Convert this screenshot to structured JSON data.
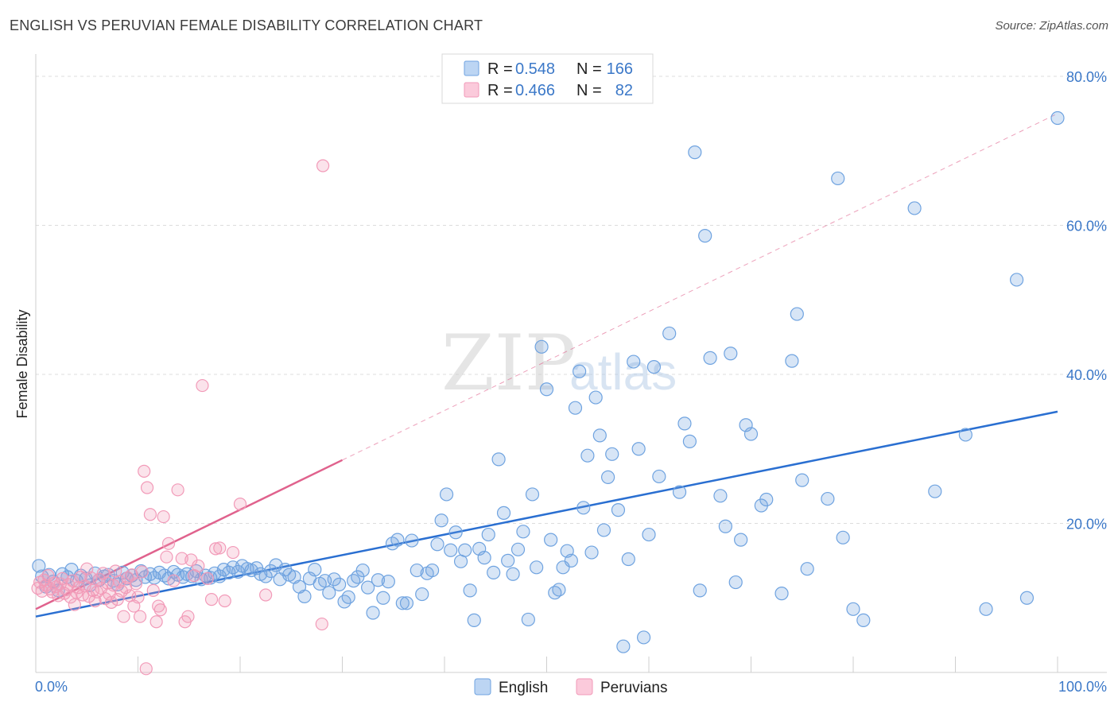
{
  "title": "ENGLISH VS PERUVIAN FEMALE DISABILITY CORRELATION CHART",
  "source": "Source: ZipAtlas.com",
  "watermark": {
    "zip": "ZIP",
    "atlas": "atlas"
  },
  "colors": {
    "english": "#6fa3e0",
    "english_line": "#2a6fd1",
    "peruvians": "#f29ab8",
    "peruvians_line": "#e0628d",
    "tick": "#3b78c8"
  },
  "legend": {
    "r_label": "R =",
    "n_label": "N =",
    "rows": [
      {
        "r": "0.548",
        "n": "166"
      },
      {
        "r": "0.466",
        "n": "82"
      }
    ]
  },
  "bottom_legend": [
    "English",
    "Peruvians"
  ],
  "chart_data": {
    "type": "scatter",
    "title": "ENGLISH VS PERUVIAN FEMALE DISABILITY CORRELATION CHART",
    "xlabel": "",
    "ylabel": "Female Disability",
    "xlim": [
      0,
      100
    ],
    "ylim": [
      0,
      80
    ],
    "x_tick_labels": [
      "0.0%",
      "100.0%"
    ],
    "y_tick_labels": [
      "20.0%",
      "40.0%",
      "60.0%",
      "80.0%"
    ],
    "y_ticks": [
      20,
      40,
      60,
      80
    ],
    "grid": "horizontal dashed",
    "legend_position": "top-center",
    "series": [
      {
        "name": "English",
        "r": 0.548,
        "n": 166,
        "trend": {
          "x0": 0,
          "y0": 7.5,
          "x1": 100,
          "y1": 35.0
        },
        "points": [
          [
            0.3,
            14.3
          ],
          [
            0.6,
            12.9
          ],
          [
            1.0,
            11.5
          ],
          [
            1.3,
            13.1
          ],
          [
            1.7,
            12.2
          ],
          [
            2.2,
            11.0
          ],
          [
            2.6,
            13.2
          ],
          [
            3.1,
            12.8
          ],
          [
            3.5,
            13.8
          ],
          [
            4.0,
            12.3
          ],
          [
            4.4,
            13.0
          ],
          [
            4.9,
            12.6
          ],
          [
            5.3,
            11.7
          ],
          [
            5.8,
            13.3
          ],
          [
            6.2,
            12.4
          ],
          [
            6.7,
            12.9
          ],
          [
            7.1,
            13.1
          ],
          [
            7.6,
            12.3
          ],
          [
            8.0,
            11.8
          ],
          [
            8.5,
            13.4
          ],
          [
            8.9,
            12.6
          ],
          [
            9.4,
            13.0
          ],
          [
            9.8,
            12.4
          ],
          [
            10.3,
            13.6
          ],
          [
            10.7,
            12.8
          ],
          [
            11.2,
            13.2
          ],
          [
            11.6,
            12.7
          ],
          [
            12.1,
            13.4
          ],
          [
            12.6,
            13.0
          ],
          [
            13.0,
            12.6
          ],
          [
            13.5,
            13.5
          ],
          [
            13.9,
            13.1
          ],
          [
            14.4,
            12.8
          ],
          [
            14.8,
            13.2
          ],
          [
            15.3,
            12.9
          ],
          [
            15.7,
            13.6
          ],
          [
            16.2,
            12.5
          ],
          [
            16.6,
            13.0
          ],
          [
            17.1,
            12.7
          ],
          [
            17.5,
            13.3
          ],
          [
            18.0,
            12.9
          ],
          [
            18.4,
            13.8
          ],
          [
            18.9,
            13.4
          ],
          [
            19.3,
            14.1
          ],
          [
            19.8,
            13.5
          ],
          [
            20.2,
            14.3
          ],
          [
            20.7,
            13.9
          ],
          [
            21.1,
            13.7
          ],
          [
            21.6,
            14.0
          ],
          [
            22.0,
            13.2
          ],
          [
            22.5,
            12.9
          ],
          [
            23.0,
            13.6
          ],
          [
            23.5,
            14.4
          ],
          [
            23.9,
            12.5
          ],
          [
            24.4,
            13.8
          ],
          [
            24.8,
            13.1
          ],
          [
            25.3,
            12.8
          ],
          [
            25.8,
            11.5
          ],
          [
            26.3,
            10.2
          ],
          [
            26.8,
            12.6
          ],
          [
            27.3,
            13.8
          ],
          [
            27.8,
            11.9
          ],
          [
            28.3,
            12.3
          ],
          [
            28.7,
            10.7
          ],
          [
            29.2,
            12.5
          ],
          [
            29.7,
            11.8
          ],
          [
            30.2,
            9.5
          ],
          [
            30.6,
            10.1
          ],
          [
            31.1,
            12.3
          ],
          [
            31.5,
            12.8
          ],
          [
            32.0,
            13.7
          ],
          [
            32.5,
            11.4
          ],
          [
            33.0,
            8.0
          ],
          [
            33.5,
            12.4
          ],
          [
            34.0,
            10.0
          ],
          [
            34.5,
            12.2
          ],
          [
            34.9,
            17.3
          ],
          [
            35.4,
            17.8
          ],
          [
            35.9,
            9.3
          ],
          [
            36.3,
            9.3
          ],
          [
            36.8,
            17.7
          ],
          [
            37.3,
            13.7
          ],
          [
            37.8,
            10.5
          ],
          [
            38.3,
            13.3
          ],
          [
            38.8,
            13.7
          ],
          [
            39.3,
            17.2
          ],
          [
            39.7,
            20.4
          ],
          [
            40.2,
            23.9
          ],
          [
            40.6,
            16.4
          ],
          [
            41.1,
            18.8
          ],
          [
            41.6,
            14.9
          ],
          [
            42.0,
            16.4
          ],
          [
            42.5,
            11.0
          ],
          [
            42.9,
            7.0
          ],
          [
            43.4,
            16.6
          ],
          [
            43.9,
            15.4
          ],
          [
            44.3,
            18.5
          ],
          [
            44.8,
            13.4
          ],
          [
            45.3,
            28.6
          ],
          [
            45.8,
            21.4
          ],
          [
            46.2,
            15.0
          ],
          [
            46.7,
            13.2
          ],
          [
            47.2,
            16.5
          ],
          [
            47.7,
            18.9
          ],
          [
            48.2,
            7.1
          ],
          [
            48.6,
            23.9
          ],
          [
            49.0,
            14.1
          ],
          [
            49.5,
            43.7
          ],
          [
            50.0,
            38.0
          ],
          [
            50.4,
            17.8
          ],
          [
            50.8,
            10.7
          ],
          [
            51.2,
            11.1
          ],
          [
            51.6,
            14.1
          ],
          [
            52.0,
            16.3
          ],
          [
            52.4,
            15.0
          ],
          [
            52.8,
            35.5
          ],
          [
            53.2,
            40.4
          ],
          [
            53.6,
            22.1
          ],
          [
            54.0,
            29.1
          ],
          [
            54.4,
            16.1
          ],
          [
            54.8,
            36.9
          ],
          [
            55.2,
            31.8
          ],
          [
            55.6,
            19.1
          ],
          [
            56.0,
            26.2
          ],
          [
            56.4,
            29.3
          ],
          [
            57.0,
            21.8
          ],
          [
            57.5,
            3.5
          ],
          [
            58.0,
            15.2
          ],
          [
            58.5,
            41.7
          ],
          [
            59.0,
            30.0
          ],
          [
            59.5,
            4.7
          ],
          [
            60.0,
            18.5
          ],
          [
            60.5,
            41.0
          ],
          [
            61.0,
            26.3
          ],
          [
            62.0,
            45.5
          ],
          [
            63.0,
            24.2
          ],
          [
            63.5,
            33.4
          ],
          [
            64.0,
            31.0
          ],
          [
            64.5,
            69.8
          ],
          [
            65.0,
            11.0
          ],
          [
            65.5,
            58.6
          ],
          [
            66.0,
            42.2
          ],
          [
            67.0,
            23.7
          ],
          [
            67.5,
            19.6
          ],
          [
            68.0,
            42.8
          ],
          [
            68.5,
            12.1
          ],
          [
            69.0,
            17.8
          ],
          [
            69.5,
            33.2
          ],
          [
            70.0,
            32.0
          ],
          [
            71.0,
            22.4
          ],
          [
            71.5,
            23.2
          ],
          [
            73.0,
            10.6
          ],
          [
            74.0,
            41.8
          ],
          [
            74.5,
            48.1
          ],
          [
            75.0,
            25.8
          ],
          [
            75.5,
            13.9
          ],
          [
            77.5,
            23.3
          ],
          [
            78.5,
            66.3
          ],
          [
            79.0,
            18.1
          ],
          [
            80.0,
            8.5
          ],
          [
            81.0,
            7.0
          ],
          [
            86.0,
            62.3
          ],
          [
            88.0,
            24.3
          ],
          [
            91.0,
            31.9
          ],
          [
            93.0,
            8.5
          ],
          [
            96.0,
            52.7
          ],
          [
            97.0,
            10.0
          ],
          [
            100.0,
            74.4
          ]
        ]
      },
      {
        "name": "Peruvians",
        "r": 0.466,
        "n": 82,
        "trend": {
          "x0": 0,
          "y0": 8.5,
          "x1": 30,
          "y1": 28.5,
          "extended_to": {
            "x": 100,
            "y": 75.0
          }
        },
        "points": [
          [
            0.2,
            11.3
          ],
          [
            0.4,
            12.1
          ],
          [
            0.6,
            10.9
          ],
          [
            0.8,
            12.4
          ],
          [
            1.0,
            11.7
          ],
          [
            1.2,
            13.0
          ],
          [
            1.4,
            11.2
          ],
          [
            1.6,
            10.8
          ],
          [
            1.8,
            12.0
          ],
          [
            2.0,
            11.5
          ],
          [
            2.2,
            10.3
          ],
          [
            2.4,
            11.9
          ],
          [
            2.6,
            12.6
          ],
          [
            2.8,
            10.6
          ],
          [
            3.0,
            11.1
          ],
          [
            3.2,
            11.8
          ],
          [
            3.4,
            10.1
          ],
          [
            3.6,
            12.3
          ],
          [
            3.8,
            9.1
          ],
          [
            4.0,
            10.7
          ],
          [
            4.2,
            11.4
          ],
          [
            4.4,
            12.8
          ],
          [
            4.6,
            10.4
          ],
          [
            4.8,
            11.6
          ],
          [
            5.0,
            13.9
          ],
          [
            5.2,
            10.2
          ],
          [
            5.4,
            12.7
          ],
          [
            5.6,
            11.0
          ],
          [
            5.8,
            9.6
          ],
          [
            6.0,
            10.8
          ],
          [
            6.2,
            12.5
          ],
          [
            6.4,
            11.3
          ],
          [
            6.6,
            13.3
          ],
          [
            6.8,
            9.9
          ],
          [
            7.0,
            12.0
          ],
          [
            7.2,
            10.5
          ],
          [
            7.4,
            9.4
          ],
          [
            7.6,
            11.7
          ],
          [
            7.8,
            13.6
          ],
          [
            8.0,
            9.8
          ],
          [
            8.2,
            12.2
          ],
          [
            8.4,
            10.9
          ],
          [
            8.6,
            7.5
          ],
          [
            8.8,
            11.4
          ],
          [
            9.0,
            12.7
          ],
          [
            9.2,
            10.3
          ],
          [
            9.4,
            13.1
          ],
          [
            9.6,
            8.9
          ],
          [
            9.8,
            11.9
          ],
          [
            10.0,
            10.1
          ],
          [
            10.2,
            7.5
          ],
          [
            10.4,
            13.5
          ],
          [
            10.6,
            27.0
          ],
          [
            10.8,
            0.5
          ],
          [
            10.9,
            24.8
          ],
          [
            11.2,
            21.2
          ],
          [
            11.5,
            11.0
          ],
          [
            11.8,
            6.8
          ],
          [
            12.0,
            8.9
          ],
          [
            12.2,
            8.4
          ],
          [
            12.5,
            20.9
          ],
          [
            12.8,
            15.5
          ],
          [
            13.0,
            17.3
          ],
          [
            13.5,
            12.3
          ],
          [
            13.9,
            24.5
          ],
          [
            14.3,
            15.3
          ],
          [
            14.6,
            6.8
          ],
          [
            14.9,
            7.5
          ],
          [
            15.2,
            15.1
          ],
          [
            15.5,
            13.0
          ],
          [
            15.9,
            14.3
          ],
          [
            16.3,
            38.5
          ],
          [
            16.8,
            12.6
          ],
          [
            17.2,
            9.8
          ],
          [
            17.6,
            16.6
          ],
          [
            18.0,
            16.7
          ],
          [
            18.5,
            9.6
          ],
          [
            19.3,
            16.1
          ],
          [
            20.0,
            22.6
          ],
          [
            22.5,
            10.4
          ],
          [
            28.0,
            6.5
          ],
          [
            28.1,
            68.0
          ]
        ]
      }
    ]
  }
}
